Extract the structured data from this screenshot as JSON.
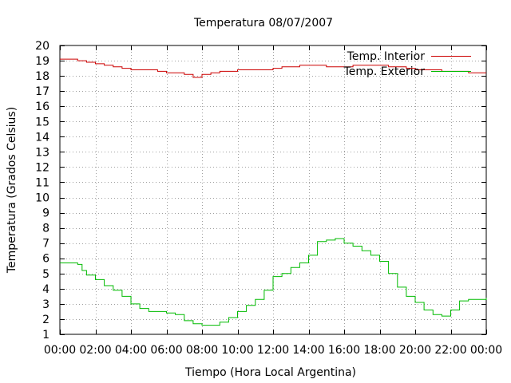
{
  "chart_data": {
    "type": "line",
    "title": "Temperatura 08/07/2007",
    "xlabel": "Tiempo (Hora Local Argentina)",
    "ylabel": "Temperatura (Grados Celsius)",
    "xlim": [
      0,
      24
    ],
    "ylim": [
      1,
      20
    ],
    "grid": true,
    "legend_position": "top-right",
    "x_ticks": [
      {
        "value": 0,
        "label": "00:00"
      },
      {
        "value": 2,
        "label": "02:00"
      },
      {
        "value": 4,
        "label": "04:00"
      },
      {
        "value": 6,
        "label": "06:00"
      },
      {
        "value": 8,
        "label": "08:00"
      },
      {
        "value": 10,
        "label": "10:00"
      },
      {
        "value": 12,
        "label": "12:00"
      },
      {
        "value": 14,
        "label": "14:00"
      },
      {
        "value": 16,
        "label": "16:00"
      },
      {
        "value": 18,
        "label": "18:00"
      },
      {
        "value": 20,
        "label": "20:00"
      },
      {
        "value": 22,
        "label": "22:00"
      },
      {
        "value": 24,
        "label": "00:00"
      }
    ],
    "y_ticks": [
      {
        "value": 1,
        "label": "1"
      },
      {
        "value": 2,
        "label": "2"
      },
      {
        "value": 3,
        "label": "3"
      },
      {
        "value": 4,
        "label": "4"
      },
      {
        "value": 5,
        "label": "5"
      },
      {
        "value": 6,
        "label": "6"
      },
      {
        "value": 7,
        "label": "7"
      },
      {
        "value": 8,
        "label": "8"
      },
      {
        "value": 9,
        "label": "9"
      },
      {
        "value": 10,
        "label": "10"
      },
      {
        "value": 11,
        "label": "11"
      },
      {
        "value": 12,
        "label": "12"
      },
      {
        "value": 13,
        "label": "13"
      },
      {
        "value": 14,
        "label": "14"
      },
      {
        "value": 15,
        "label": "15"
      },
      {
        "value": 16,
        "label": "16"
      },
      {
        "value": 17,
        "label": "17"
      },
      {
        "value": 18,
        "label": "18"
      },
      {
        "value": 19,
        "label": "19"
      },
      {
        "value": 20,
        "label": "20"
      }
    ],
    "series": [
      {
        "name": "Temp. Interior",
        "color": "#cc0000",
        "x": [
          0,
          0.5,
          1.0,
          1.5,
          2.0,
          2.5,
          3.0,
          3.5,
          4.0,
          5.0,
          5.5,
          6.0,
          6.5,
          7.0,
          7.5,
          8.0,
          8.5,
          9.0,
          10.0,
          10.5,
          11.0,
          11.5,
          12.0,
          12.5,
          13.0,
          13.5,
          14.0,
          14.5,
          15.0,
          16.0,
          16.5,
          17.0,
          17.5,
          18.0,
          18.5,
          19.0,
          19.5,
          20.0,
          20.5,
          21.0,
          21.5,
          22.0,
          22.5,
          23.0,
          24.0
        ],
        "y": [
          19.1,
          19.1,
          19.0,
          18.9,
          18.8,
          18.7,
          18.6,
          18.5,
          18.4,
          18.4,
          18.3,
          18.2,
          18.2,
          18.1,
          17.9,
          18.1,
          18.2,
          18.3,
          18.4,
          18.4,
          18.4,
          18.4,
          18.5,
          18.6,
          18.6,
          18.7,
          18.7,
          18.7,
          18.6,
          18.6,
          18.7,
          18.7,
          18.7,
          18.7,
          18.6,
          18.6,
          18.5,
          18.4,
          18.4,
          18.4,
          18.3,
          18.3,
          18.3,
          18.2,
          18.2
        ]
      },
      {
        "name": "Temp. Exterior",
        "color": "#00bb00",
        "x": [
          0,
          0.5,
          1.0,
          1.25,
          1.5,
          2.0,
          2.5,
          3.0,
          3.5,
          4.0,
          4.5,
          5.0,
          5.5,
          6.0,
          6.5,
          7.0,
          7.5,
          8.0,
          8.5,
          9.0,
          9.5,
          10.0,
          10.5,
          11.0,
          11.5,
          12.0,
          12.5,
          13.0,
          13.5,
          14.0,
          14.5,
          15.0,
          15.5,
          16.0,
          16.5,
          17.0,
          17.5,
          18.0,
          18.5,
          19.0,
          19.5,
          20.0,
          20.5,
          21.0,
          21.5,
          22.0,
          22.5,
          23.0,
          23.5,
          24.0
        ],
        "y": [
          5.7,
          5.7,
          5.6,
          5.2,
          4.9,
          4.6,
          4.2,
          3.9,
          3.5,
          3.0,
          2.7,
          2.5,
          2.5,
          2.4,
          2.3,
          1.9,
          1.7,
          1.6,
          1.6,
          1.8,
          2.1,
          2.5,
          2.9,
          3.3,
          3.9,
          4.8,
          5.0,
          5.4,
          5.7,
          6.2,
          7.1,
          7.2,
          7.3,
          7.0,
          6.8,
          6.5,
          6.2,
          5.8,
          5.0,
          4.1,
          3.5,
          3.1,
          2.6,
          2.3,
          2.2,
          2.6,
          3.2,
          3.3,
          3.3,
          3.4
        ]
      }
    ]
  }
}
